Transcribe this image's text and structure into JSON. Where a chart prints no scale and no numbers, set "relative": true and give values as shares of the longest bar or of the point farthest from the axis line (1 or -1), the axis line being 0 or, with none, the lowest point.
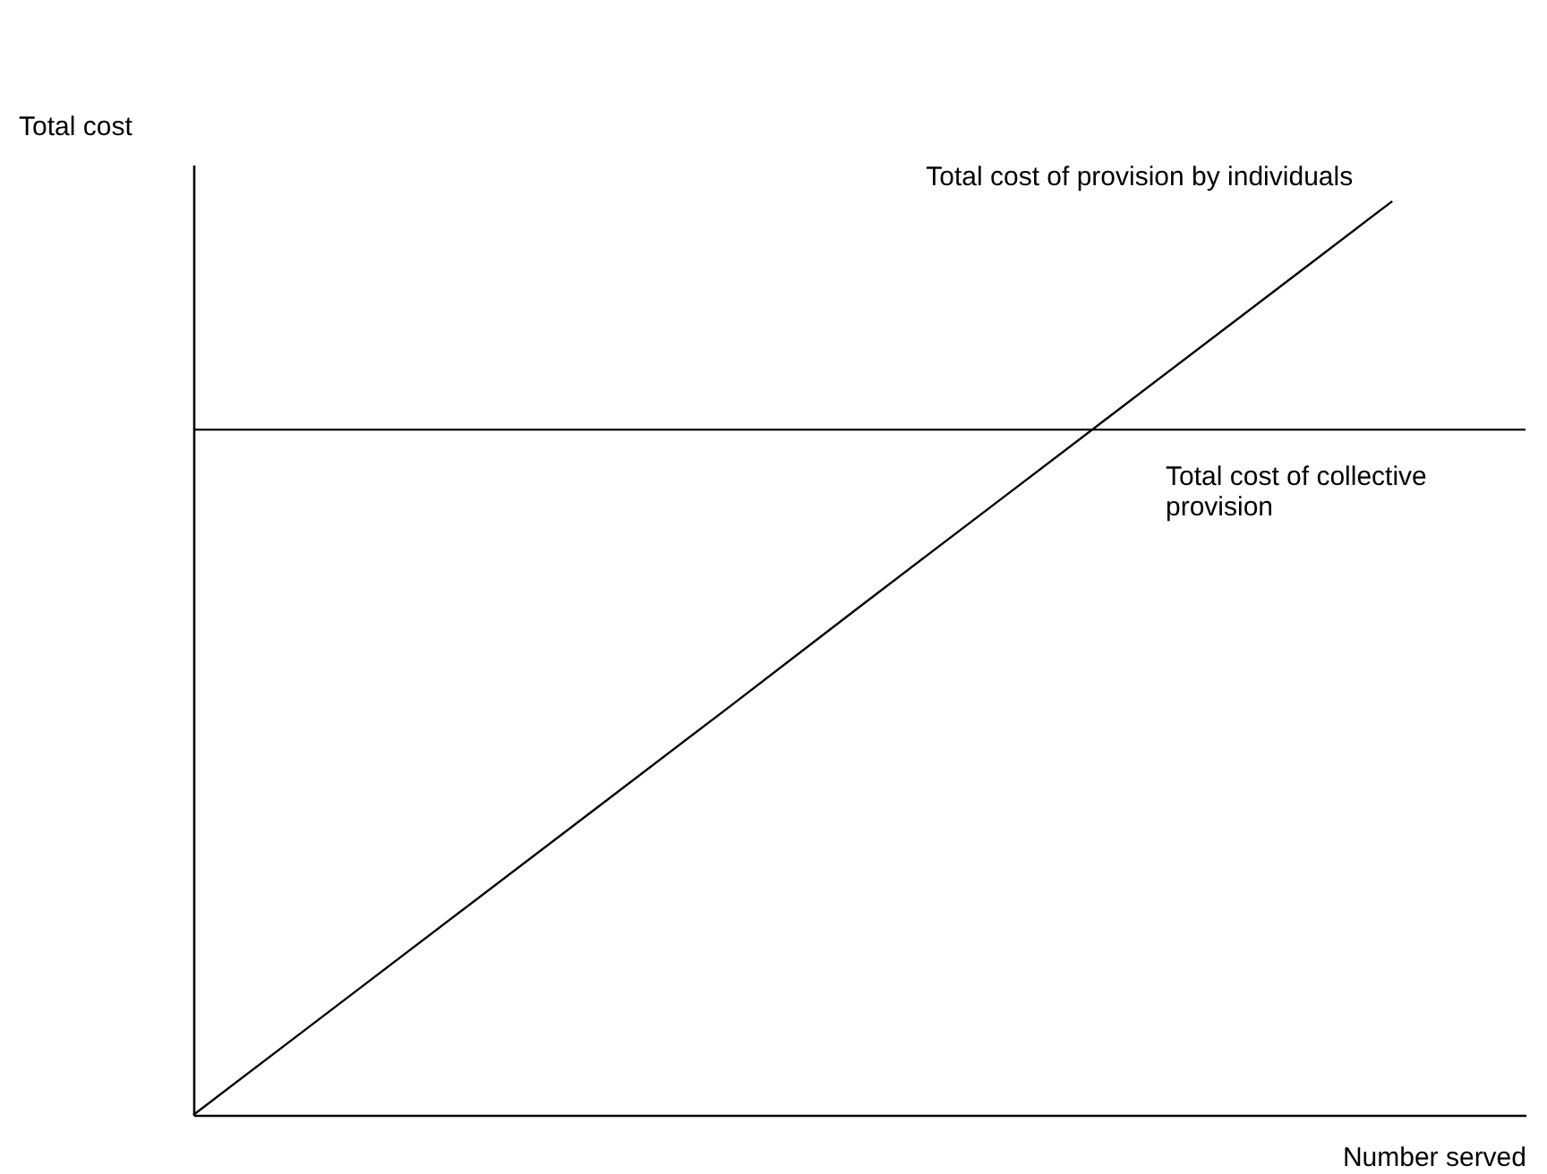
{
  "chart_data": {
    "type": "line",
    "relative": true,
    "xlabel": "Number served",
    "ylabel": "Total cost",
    "categories": [
      null,
      null,
      null,
      null,
      null,
      null,
      null,
      null,
      null,
      null,
      null
    ],
    "series": [
      {
        "name": "Total cost of provision by individuals",
        "color": "#000000",
        "values": [
          0,
          0.111,
          0.222,
          0.333,
          0.444,
          0.556,
          0.667,
          0.778,
          0.889,
          1,
          null
        ]
      },
      {
        "name": "Total cost of collective provision",
        "color": "#000000",
        "values": [
          0.75,
          0.75,
          0.75,
          0.75,
          0.75,
          0.75,
          0.75,
          0.75,
          0.75,
          0.75,
          0.75
        ]
      }
    ]
  }
}
